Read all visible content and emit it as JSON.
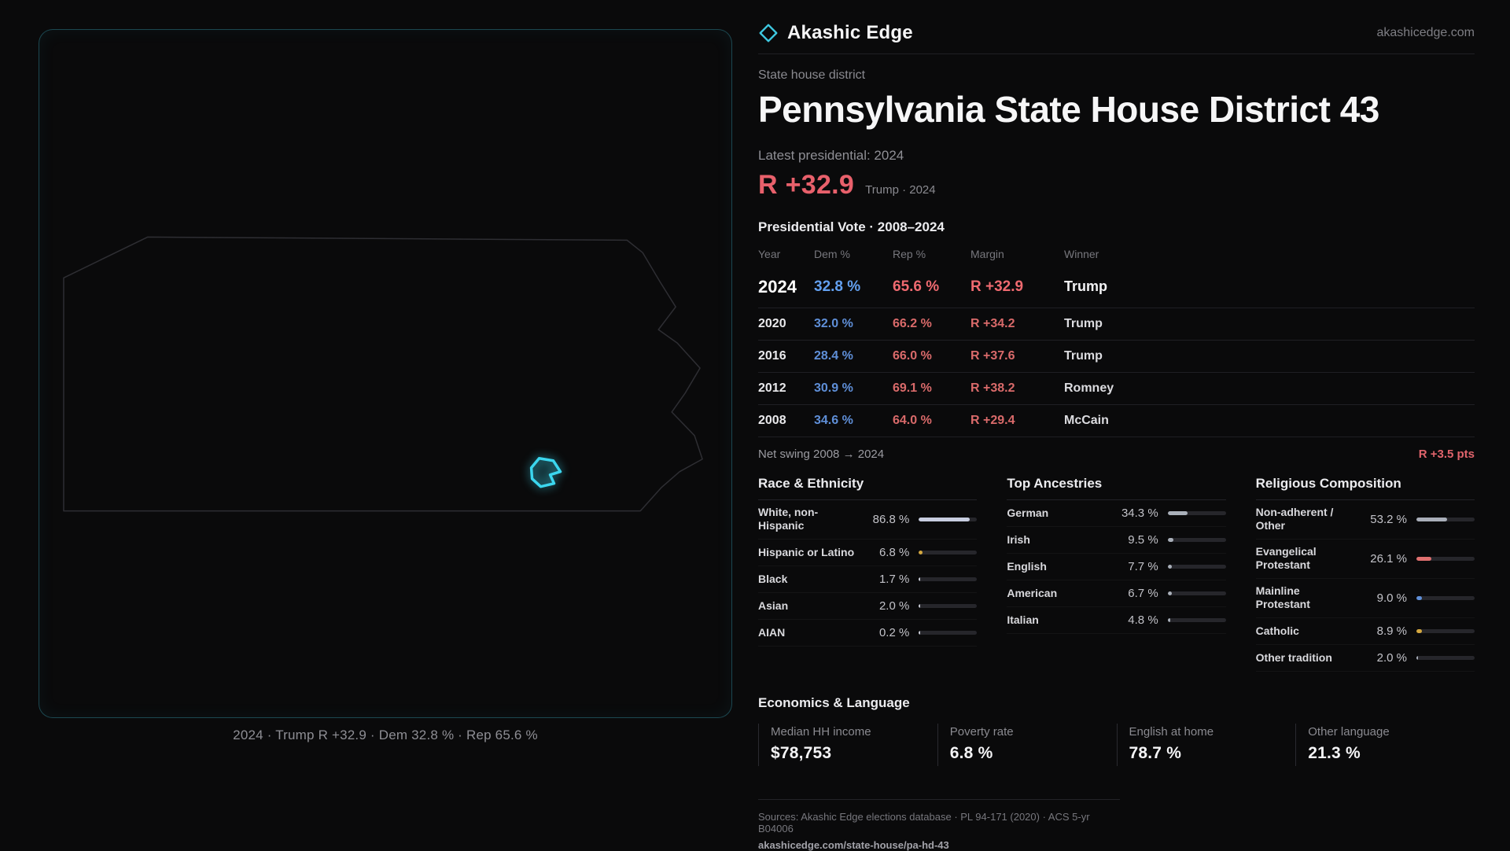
{
  "brand": {
    "name": "Akashic Edge",
    "domain": "akashicedge.com",
    "accent_color": "#3ec8e0"
  },
  "header": {
    "kicker": "State house district",
    "title": "Pennsylvania State House District 43",
    "latest_label": "Latest presidential: 2024",
    "headline_margin": "R +32.9",
    "headline_note": "Trump · 2024",
    "margin_color": "#e8606b"
  },
  "map": {
    "caption": "2024 · Trump R +32.9 · Dem 32.8 % · Rep 65.6 %",
    "highlight_color": "#3bd6ee"
  },
  "vote_table": {
    "title": "Presidential Vote · 2008–2024",
    "columns": [
      "Year",
      "Dem %",
      "Rep %",
      "Margin",
      "Winner"
    ],
    "rows": [
      {
        "year": "2024",
        "dem": "32.8 %",
        "rep": "65.6 %",
        "margin": "R +32.9",
        "winner": "Trump"
      },
      {
        "year": "2020",
        "dem": "32.0 %",
        "rep": "66.2 %",
        "margin": "R +34.2",
        "winner": "Trump"
      },
      {
        "year": "2016",
        "dem": "28.4 %",
        "rep": "66.0 %",
        "margin": "R +37.6",
        "winner": "Trump"
      },
      {
        "year": "2012",
        "dem": "30.9 %",
        "rep": "69.1 %",
        "margin": "R +38.2",
        "winner": "Romney"
      },
      {
        "year": "2008",
        "dem": "34.6 %",
        "rep": "64.0 %",
        "margin": "R +29.4",
        "winner": "McCain"
      }
    ],
    "net_swing_label": "Net swing 2008 → 2024",
    "net_swing_value": "R +3.5 pts",
    "dem_color": "#5f8fd8",
    "rep_color": "#d96a6a"
  },
  "demographics": [
    {
      "title": "Race & Ethnicity",
      "rows": [
        {
          "label": "White, non-Hispanic",
          "value": "86.8 %",
          "pct": 86.8,
          "color": "#c7cde0"
        },
        {
          "label": "Hispanic or Latino",
          "value": "6.8 %",
          "pct": 6.8,
          "color": "#d4a83f"
        },
        {
          "label": "Black",
          "value": "1.7 %",
          "pct": 1.7,
          "color": "#c9ccd6"
        },
        {
          "label": "Asian",
          "value": "2.0 %",
          "pct": 2.0,
          "color": "#c9ccd6"
        },
        {
          "label": "AIAN",
          "value": "0.2 %",
          "pct": 0.2,
          "color": "#c9ccd6"
        }
      ]
    },
    {
      "title": "Top Ancestries",
      "rows": [
        {
          "label": "German",
          "value": "34.3 %",
          "pct": 34.3,
          "color": "#aab0ba"
        },
        {
          "label": "Irish",
          "value": "9.5 %",
          "pct": 9.5,
          "color": "#aab0ba"
        },
        {
          "label": "English",
          "value": "7.7 %",
          "pct": 7.7,
          "color": "#aab0ba"
        },
        {
          "label": "American",
          "value": "6.7 %",
          "pct": 6.7,
          "color": "#aab0ba"
        },
        {
          "label": "Italian",
          "value": "4.8 %",
          "pct": 4.8,
          "color": "#aab0ba"
        }
      ]
    },
    {
      "title": "Religious Composition",
      "rows": [
        {
          "label": "Non-adherent / Other",
          "value": "53.2 %",
          "pct": 53.2,
          "color": "#a9aeb9"
        },
        {
          "label": "Evangelical Protestant",
          "value": "26.1 %",
          "pct": 26.1,
          "color": "#e0706f"
        },
        {
          "label": "Mainline Protestant",
          "value": "9.0 %",
          "pct": 9.0,
          "color": "#5f8fd8"
        },
        {
          "label": "Catholic",
          "value": "8.9 %",
          "pct": 8.9,
          "color": "#d4a83f"
        },
        {
          "label": "Other tradition",
          "value": "2.0 %",
          "pct": 2.0,
          "color": "#a9aeb9"
        }
      ]
    }
  ],
  "economics": {
    "title": "Economics & Language",
    "stats": [
      {
        "label": "Median HH income",
        "value": "$78,753"
      },
      {
        "label": "Poverty rate",
        "value": "6.8 %"
      },
      {
        "label": "English at home",
        "value": "78.7 %"
      },
      {
        "label": "Other language",
        "value": "21.3 %"
      }
    ]
  },
  "footer": {
    "sources": "Sources: Akashic Edge elections database · PL 94-171 (2020) · ACS 5-yr B04006",
    "permalink": "akashicedge.com/state-house/pa-hd-43"
  },
  "chart_data": [
    {
      "type": "table",
      "title": "Presidential Vote · 2008–2024",
      "columns": [
        "Year",
        "Dem %",
        "Rep %",
        "Margin",
        "Winner"
      ],
      "rows": [
        [
          2024,
          32.8,
          65.6,
          "R +32.9",
          "Trump"
        ],
        [
          2020,
          32.0,
          66.2,
          "R +34.2",
          "Trump"
        ],
        [
          2016,
          28.4,
          66.0,
          "R +37.6",
          "Trump"
        ],
        [
          2012,
          30.9,
          69.1,
          "R +38.2",
          "Romney"
        ],
        [
          2008,
          34.6,
          64.0,
          "R +29.4",
          "McCain"
        ]
      ],
      "net_swing": "R +3.5 pts"
    },
    {
      "type": "bar",
      "title": "Race & Ethnicity",
      "categories": [
        "White, non-Hispanic",
        "Hispanic or Latino",
        "Black",
        "Asian",
        "AIAN"
      ],
      "values": [
        86.8,
        6.8,
        1.7,
        2.0,
        0.2
      ],
      "xlabel": "",
      "ylabel": "Percent",
      "xlim": [
        0,
        100
      ]
    },
    {
      "type": "bar",
      "title": "Top Ancestries",
      "categories": [
        "German",
        "Irish",
        "English",
        "American",
        "Italian"
      ],
      "values": [
        34.3,
        9.5,
        7.7,
        6.7,
        4.8
      ],
      "xlabel": "",
      "ylabel": "Percent",
      "xlim": [
        0,
        100
      ]
    },
    {
      "type": "bar",
      "title": "Religious Composition",
      "categories": [
        "Non-adherent / Other",
        "Evangelical Protestant",
        "Mainline Protestant",
        "Catholic",
        "Other tradition"
      ],
      "values": [
        53.2,
        26.1,
        9.0,
        8.9,
        2.0
      ],
      "xlabel": "",
      "ylabel": "Percent",
      "xlim": [
        0,
        100
      ]
    }
  ]
}
